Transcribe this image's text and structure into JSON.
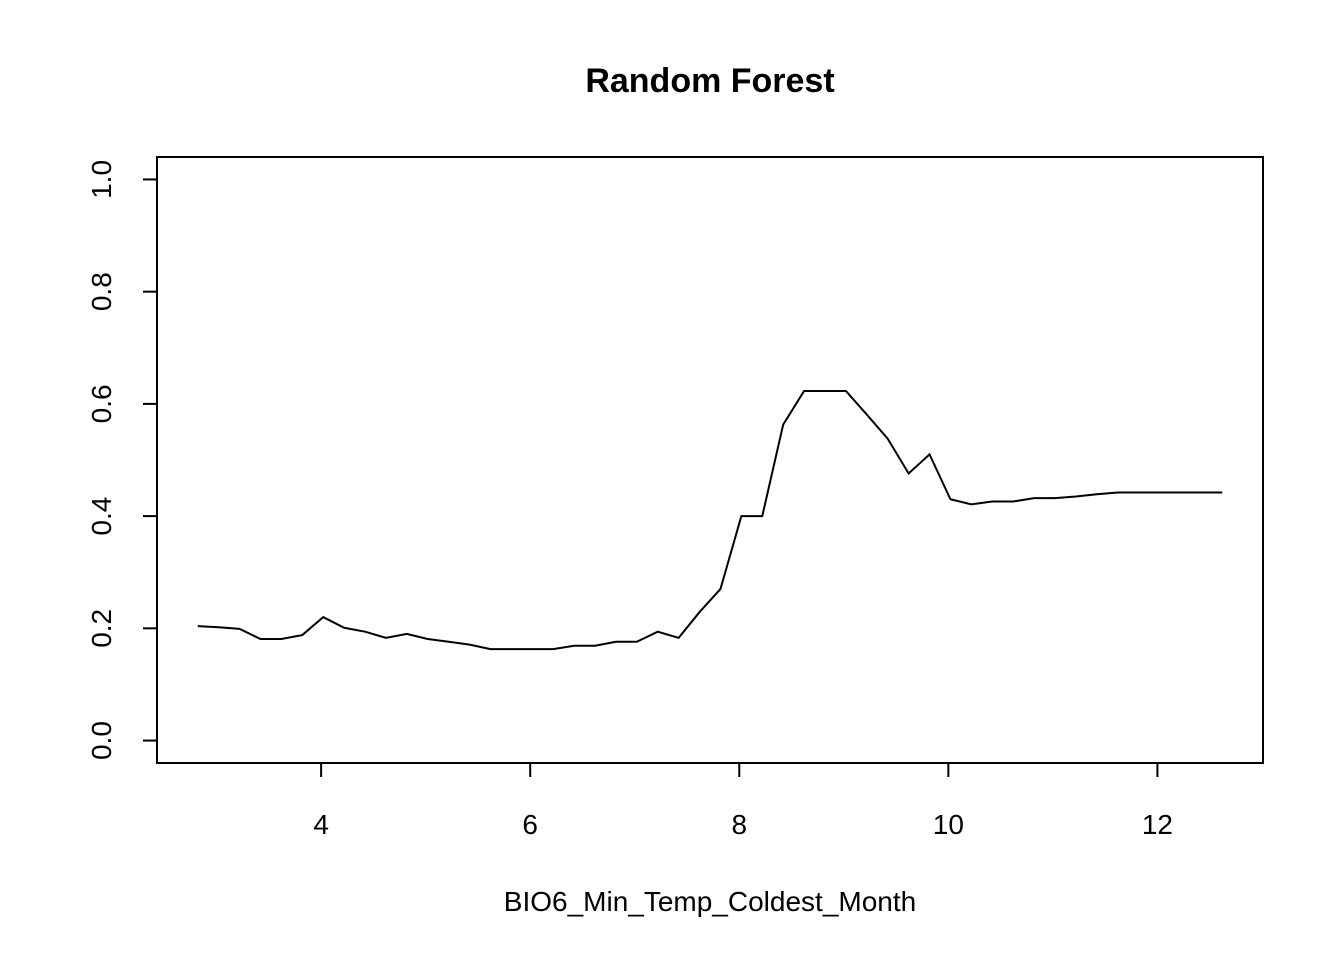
{
  "chart_data": {
    "type": "line",
    "title": "Random Forest",
    "x_label": "BIO6_Min_Temp_Coldest_Month",
    "x": [
      2.82,
      3.02,
      3.22,
      3.42,
      3.62,
      3.82,
      4.02,
      4.22,
      4.42,
      4.62,
      4.82,
      5.02,
      5.22,
      5.42,
      5.62,
      5.82,
      6.02,
      6.22,
      6.42,
      6.62,
      6.82,
      7.02,
      7.22,
      7.42,
      7.62,
      7.82,
      8.02,
      8.22,
      8.42,
      8.62,
      8.82,
      9.02,
      9.22,
      9.42,
      9.62,
      9.82,
      10.02,
      10.22,
      10.42,
      10.62,
      10.82,
      11.02,
      11.22,
      11.42,
      11.62,
      11.82,
      12.02,
      12.22,
      12.42,
      12.62
    ],
    "series": [
      {
        "color": "#000000",
        "values": [
          0.204,
          0.202,
          0.199,
          0.181,
          0.181,
          0.188,
          0.22,
          0.201,
          0.194,
          0.183,
          0.19,
          0.181,
          0.176,
          0.171,
          0.163,
          0.163,
          0.163,
          0.163,
          0.169,
          0.169,
          0.176,
          0.176,
          0.194,
          0.183,
          0.229,
          0.27,
          0.4,
          0.4,
          0.563,
          0.623,
          0.623,
          0.623,
          0.581,
          0.538,
          0.476,
          0.51,
          0.43,
          0.421,
          0.426,
          0.426,
          0.432,
          0.432,
          0.435,
          0.439,
          0.442,
          0.442,
          0.442,
          0.442,
          0.442,
          0.442
        ]
      }
    ],
    "xlim": [
      2.43,
      13.01
    ],
    "xticks": [
      4,
      6,
      8,
      10,
      12
    ],
    "ylim": [
      -0.04,
      1.04
    ],
    "yticks": [
      {
        "value": 0,
        "label": "0.0"
      },
      0.2,
      0.4,
      0.6,
      0.8,
      {
        "value": 1,
        "label": "1.0"
      }
    ]
  }
}
